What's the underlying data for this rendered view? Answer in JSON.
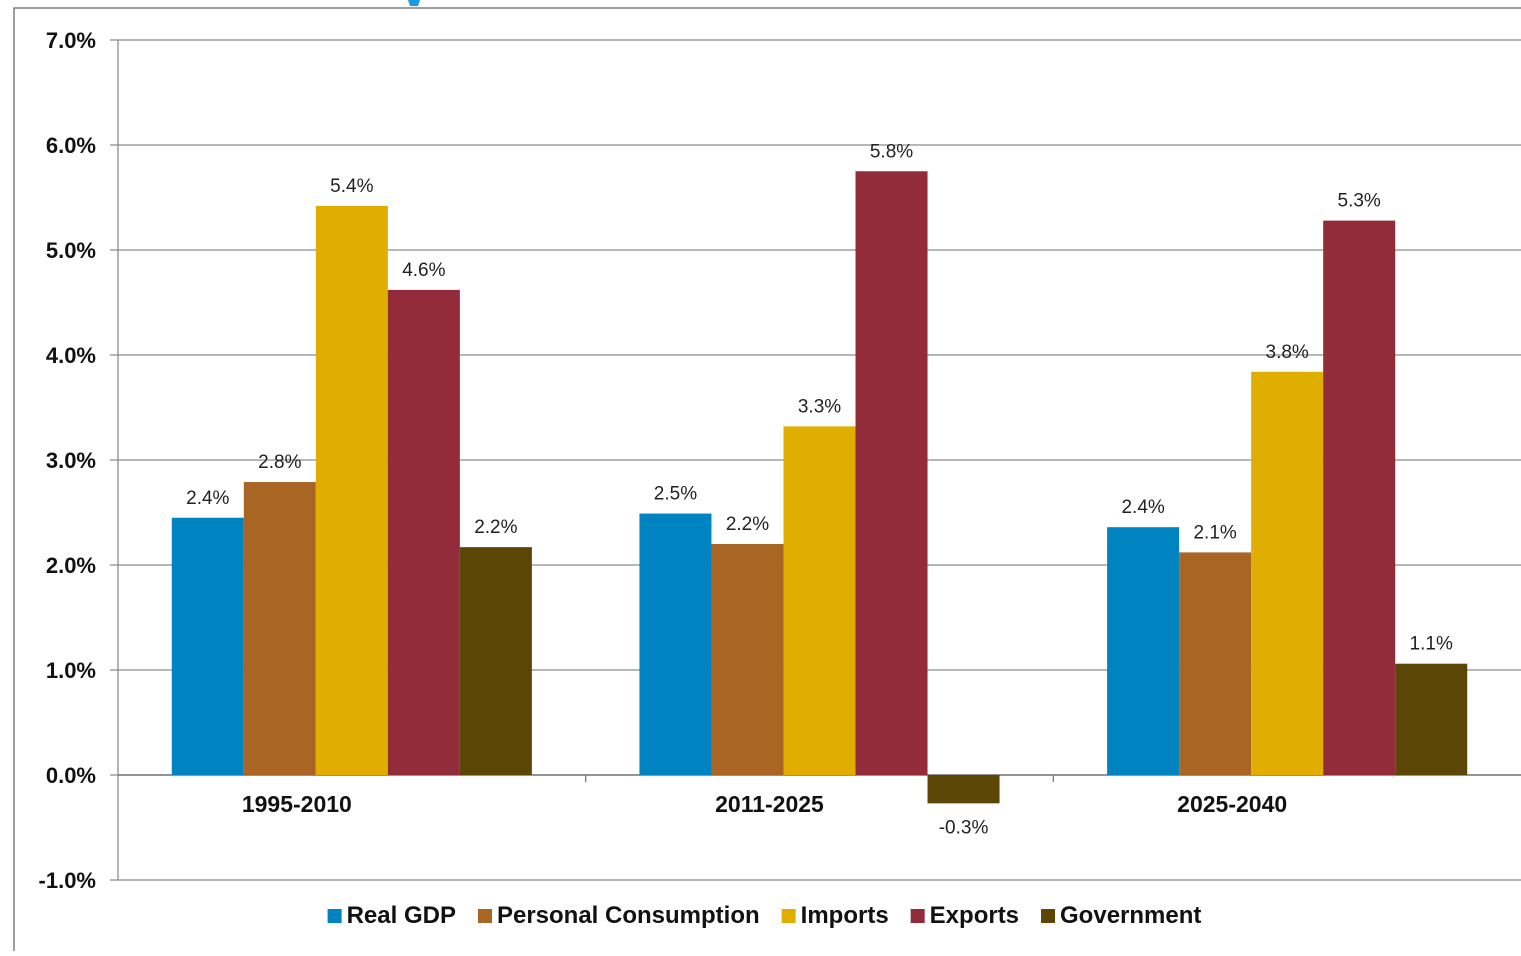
{
  "chart_data": {
    "type": "bar",
    "categories": [
      "1995-2010",
      "2011-2025",
      "2025-2040"
    ],
    "series": [
      {
        "name": "Real GDP",
        "color": "#0083C1",
        "values": [
          2.45,
          2.49,
          2.36
        ],
        "labels": [
          "2.4%",
          "2.5%",
          "2.4%"
        ]
      },
      {
        "name": "Personal Consumption",
        "color": "#A86524",
        "values": [
          2.79,
          2.2,
          2.12
        ],
        "labels": [
          "2.8%",
          "2.2%",
          "2.1%"
        ]
      },
      {
        "name": "Imports",
        "color": "#E0AE00",
        "values": [
          5.42,
          3.32,
          3.84
        ],
        "labels": [
          "5.4%",
          "3.3%",
          "3.8%"
        ]
      },
      {
        "name": "Exports",
        "color": "#922C3B",
        "values": [
          4.62,
          5.75,
          5.28
        ],
        "labels": [
          "4.6%",
          "5.8%",
          "5.3%"
        ]
      },
      {
        "name": "Government",
        "color": "#5B4606",
        "values": [
          2.17,
          -0.27,
          1.06
        ],
        "labels": [
          "2.2%",
          "-0.3%",
          "1.1%"
        ]
      }
    ],
    "ylim": [
      -1.0,
      7.0
    ],
    "yticks": [
      -1.0,
      0.0,
      1.0,
      2.0,
      3.0,
      4.0,
      5.0,
      6.0,
      7.0
    ],
    "ytick_labels": [
      "-1.0%",
      "0.0%",
      "1.0%",
      "2.0%",
      "3.0%",
      "4.0%",
      "5.0%",
      "6.0%",
      "7.0%"
    ],
    "title": "",
    "xlabel": "",
    "ylabel": "",
    "grid": true,
    "legend_position": "bottom"
  }
}
